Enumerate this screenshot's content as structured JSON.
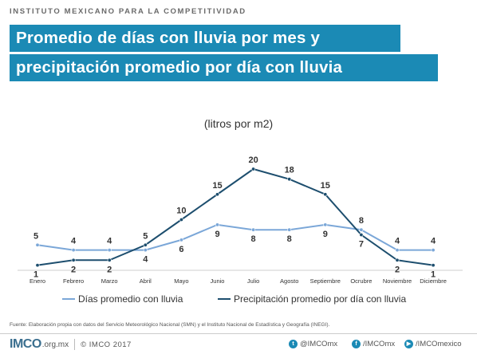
{
  "header": {
    "org": "INSTITUTO MEXICANO PARA LA COMPETITIVIDAD",
    "title_line1": "Promedio de días con lluvia por mes y",
    "title_line2": "precipitación promedio por día con lluvia"
  },
  "chart_data": {
    "type": "line",
    "subtitle": "(litros por m2)",
    "categories": [
      "Enero",
      "Febrero",
      "Marzo",
      "Abril",
      "Mayo",
      "Junio",
      "Julio",
      "Agosto",
      "Septiembre",
      "Ocrubre",
      "Noviembre",
      "Diciembre"
    ],
    "series": [
      {
        "name": "Días promedio con lluvia",
        "values": [
          5,
          4,
          4,
          4,
          6,
          9,
          8,
          8,
          9,
          8,
          4,
          4
        ],
        "color": "#7ba7d8"
      },
      {
        "name": "Precipitación promedio por día con lluvia",
        "values": [
          1,
          2,
          2,
          5,
          10,
          15,
          20,
          18,
          15,
          7,
          2,
          1
        ],
        "color": "#1d4e6e"
      }
    ],
    "ylim": [
      0,
      21
    ],
    "grid": false,
    "legend_position": "bottom"
  },
  "footer": {
    "source": "Fuente: Elaboración propia con datos del Servicio Meteorológico Nacional (SMN) y el Instituto Nacional de Estadística y Geografía (INEGI).",
    "logo": "IMCO",
    "logo_url": ".org.mx",
    "copyright": "© IMCO 2017",
    "twitter": "@IMCOmx",
    "facebook": "/IMCOmx",
    "youtube": "/IMCOmexico"
  }
}
